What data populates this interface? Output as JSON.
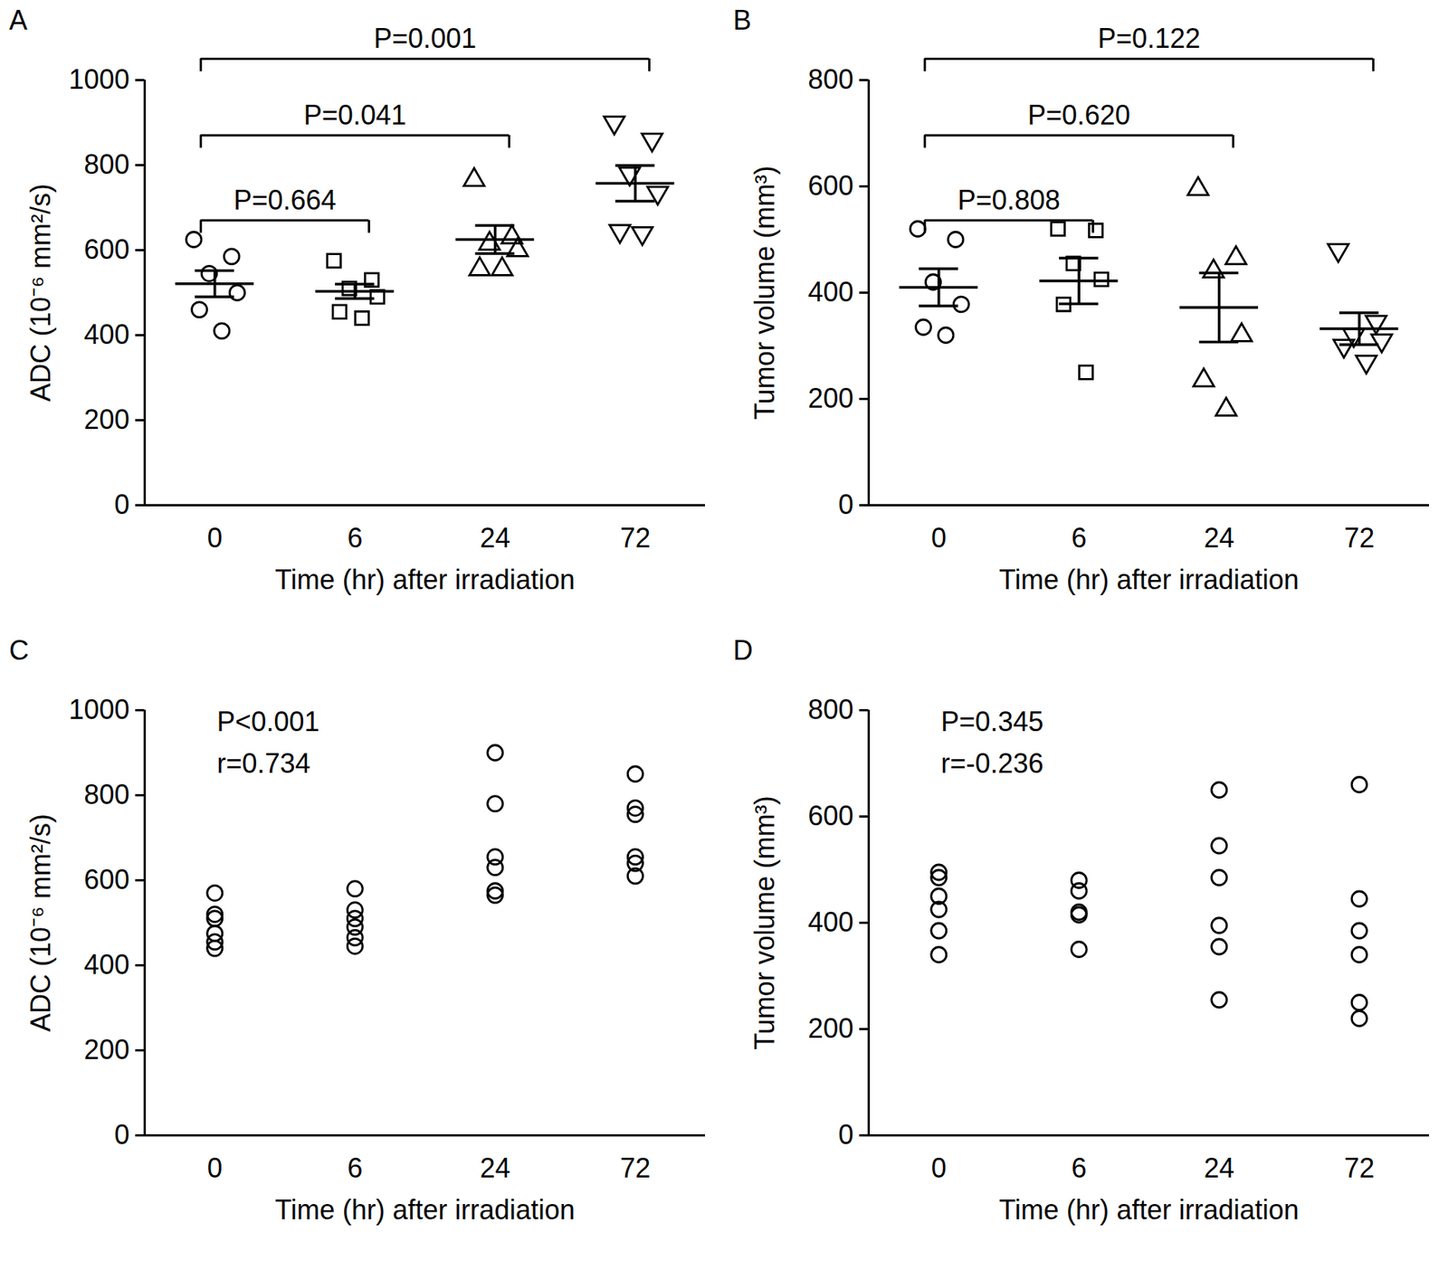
{
  "chart_data": [
    {
      "type": "scatter",
      "label": "A",
      "x_label": "Time (hr) after irradiation",
      "y_label": "ADC (10⁻⁶ mm²/s)",
      "categories": [
        0,
        6,
        24,
        72
      ],
      "ylim": [
        0,
        1000
      ],
      "yticks": [
        0,
        200,
        400,
        600,
        800,
        1000
      ],
      "groups": [
        {
          "marker": "circle",
          "values": [
            625,
            585,
            545,
            500,
            460,
            410
          ],
          "mean": 521,
          "sem": 31
        },
        {
          "marker": "square",
          "values": [
            575,
            530,
            510,
            490,
            455,
            440
          ],
          "mean": 503,
          "sem": 17
        },
        {
          "marker": "triangle",
          "values": [
            765,
            630,
            615,
            600,
            555,
            555
          ],
          "mean": 625,
          "sem": 33
        },
        {
          "marker": "triangle-down",
          "values": [
            900,
            860,
            780,
            735,
            645,
            640
          ],
          "mean": 757,
          "sem": 42
        }
      ],
      "annotations": [
        {
          "text": "P=0.664",
          "from": 0,
          "to": 6
        },
        {
          "text": "P=0.041",
          "from": 0,
          "to": 24
        },
        {
          "text": "P=0.001",
          "from": 0,
          "to": 72
        }
      ]
    },
    {
      "type": "scatter",
      "label": "B",
      "x_label": "Time (hr) after irradiation",
      "y_label": "Tumor volume (mm³)",
      "categories": [
        0,
        6,
        24,
        72
      ],
      "ylim": [
        0,
        800
      ],
      "yticks": [
        0,
        200,
        400,
        600,
        800
      ],
      "groups": [
        {
          "marker": "circle",
          "values": [
            520,
            500,
            420,
            378,
            335,
            320
          ],
          "mean": 410,
          "sem": 35
        },
        {
          "marker": "square",
          "values": [
            520,
            517,
            455,
            425,
            378,
            250
          ],
          "mean": 422,
          "sem": 43
        },
        {
          "marker": "triangle",
          "values": [
            595,
            465,
            440,
            320,
            235,
            180
          ],
          "mean": 372,
          "sem": 65
        },
        {
          "marker": "triangle-down",
          "values": [
            480,
            345,
            320,
            310,
            300,
            270
          ],
          "mean": 332,
          "sem": 30
        }
      ],
      "annotations": [
        {
          "text": "P=0.808",
          "from": 0,
          "to": 6
        },
        {
          "text": "P=0.620",
          "from": 0,
          "to": 24
        },
        {
          "text": "P=0.122",
          "from": 0,
          "to": 72
        }
      ]
    },
    {
      "type": "scatter",
      "label": "C",
      "x_label": "Time (hr) after irradiation",
      "y_label": "ADC (10⁻⁶ mm²/s)",
      "categories": [
        0,
        6,
        24,
        72
      ],
      "ylim": [
        0,
        1000
      ],
      "yticks": [
        0,
        200,
        400,
        600,
        800,
        1000
      ],
      "groups": [
        {
          "marker": "circle",
          "values": [
            570,
            520,
            510,
            475,
            455,
            440
          ]
        },
        {
          "marker": "circle",
          "values": [
            580,
            530,
            510,
            490,
            465,
            445
          ]
        },
        {
          "marker": "circle",
          "values": [
            900,
            780,
            655,
            630,
            575,
            565
          ]
        },
        {
          "marker": "circle",
          "values": [
            850,
            770,
            755,
            655,
            640,
            610
          ]
        }
      ],
      "annotations": [
        {
          "text": "P<0.001"
        },
        {
          "text": "r=0.734"
        }
      ]
    },
    {
      "type": "scatter",
      "label": "D",
      "x_label": "Time (hr) after irradiation",
      "y_label": "Tumor volume (mm³)",
      "categories": [
        0,
        6,
        24,
        72
      ],
      "ylim": [
        0,
        800
      ],
      "yticks": [
        0,
        200,
        400,
        600,
        800
      ],
      "groups": [
        {
          "marker": "circle",
          "values": [
            495,
            485,
            450,
            425,
            385,
            340
          ]
        },
        {
          "marker": "circle",
          "values": [
            480,
            460,
            420,
            415,
            350
          ]
        },
        {
          "marker": "circle",
          "values": [
            650,
            545,
            485,
            395,
            355,
            255
          ]
        },
        {
          "marker": "circle",
          "values": [
            660,
            445,
            385,
            340,
            250,
            220
          ]
        }
      ],
      "annotations": [
        {
          "text": "P=0.345"
        },
        {
          "text": "r=-0.236"
        }
      ]
    }
  ]
}
